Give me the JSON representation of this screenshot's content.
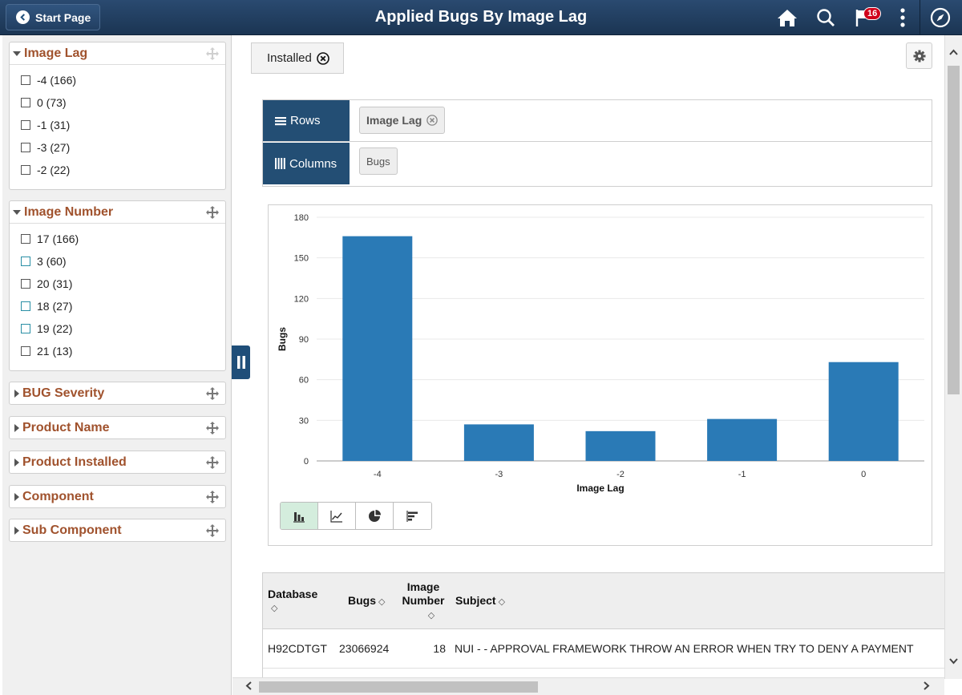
{
  "header": {
    "back_label": "Start Page",
    "title": "Applied Bugs By Image Lag",
    "notification_count": "16"
  },
  "facets": [
    {
      "title": "Image Lag",
      "expanded": true,
      "items": [
        {
          "label": "-4 (166)"
        },
        {
          "label": "0 (73)"
        },
        {
          "label": "-1 (31)"
        },
        {
          "label": "-3 (27)"
        },
        {
          "label": "-2 (22)"
        }
      ]
    },
    {
      "title": "Image Number",
      "expanded": true,
      "items": [
        {
          "label": "17 (166)"
        },
        {
          "label": "3 (60)"
        },
        {
          "label": "20 (31)"
        },
        {
          "label": "18 (27)"
        },
        {
          "label": "19 (22)"
        },
        {
          "label": "21 (13)"
        }
      ]
    },
    {
      "title": "BUG Severity",
      "expanded": false
    },
    {
      "title": "Product Name",
      "expanded": false
    },
    {
      "title": "Product Installed",
      "expanded": false
    },
    {
      "title": "Component",
      "expanded": false
    },
    {
      "title": "Sub Component",
      "expanded": false
    }
  ],
  "filter_chip": {
    "label": "Installed"
  },
  "pivot": {
    "rows_label": "Rows",
    "rows_chip": "Image Lag",
    "columns_label": "Columns",
    "columns_chip": "Bugs"
  },
  "chart_data": {
    "type": "bar",
    "categories": [
      "-4",
      "-3",
      "-2",
      "-1",
      "0"
    ],
    "values": [
      166,
      27,
      22,
      31,
      73
    ],
    "xlabel": "Image Lag",
    "ylabel": "Bugs",
    "ylim": [
      0,
      180
    ],
    "yticks": [
      0,
      30,
      60,
      90,
      120,
      150,
      180
    ],
    "color": "#2a7ab6",
    "grid": true,
    "legend": "none"
  },
  "chart_types": [
    "bar-chart-icon",
    "line-chart-icon",
    "pie-chart-icon",
    "horizontal-bar-icon"
  ],
  "table": {
    "headers": {
      "database": "Database",
      "bugs": "Bugs",
      "image_number_1": "Image",
      "image_number_2": "Number",
      "subject": "Subject"
    },
    "rows": [
      {
        "database": "H92CDTGT",
        "bugs": "23066924",
        "image_number": "18",
        "subject": "NUI - - APPROVAL FRAMEWORK THROW AN ERROR WHEN TRY TO DENY A PAYMENT"
      }
    ]
  }
}
